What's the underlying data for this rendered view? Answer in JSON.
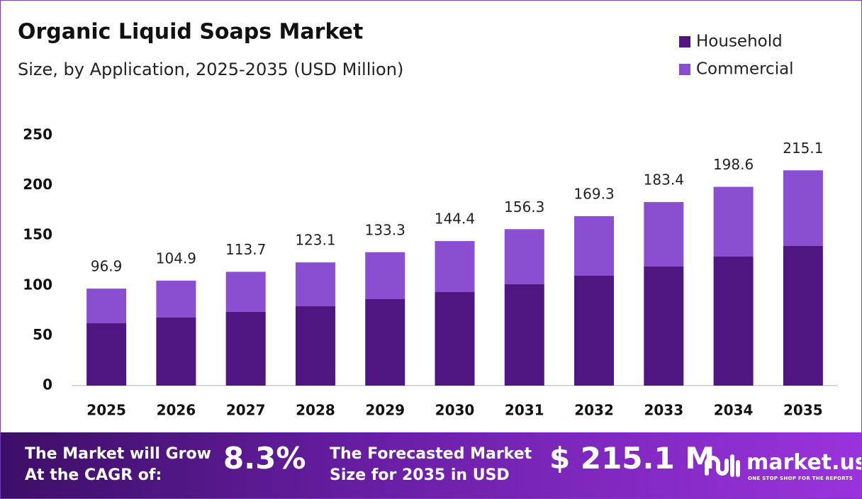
{
  "chart_data": {
    "type": "stacked_bar",
    "title": "Organic Liquid Soaps Market",
    "subtitle": "Size, by Application, 2025-2035 (USD Million)",
    "categories": [
      "2025",
      "2026",
      "2027",
      "2028",
      "2029",
      "2030",
      "2031",
      "2032",
      "2033",
      "2034",
      "2035"
    ],
    "series": [
      {
        "name": "Household",
        "color": "#4f1581",
        "values": [
          62.3,
          68.0,
          73.7,
          79.3,
          86.4,
          93.5,
          101.3,
          109.8,
          119.0,
          128.9,
          139.5
        ]
      },
      {
        "name": "Commercial",
        "color": "#8a4fd0",
        "values": [
          34.6,
          36.9,
          40.0,
          43.8,
          46.9,
          50.9,
          55.0,
          59.5,
          64.4,
          69.7,
          75.6
        ]
      }
    ],
    "totals": [
      96.9,
      104.9,
      113.7,
      123.1,
      133.3,
      144.4,
      156.3,
      169.3,
      183.4,
      198.6,
      215.1
    ],
    "ylim": [
      0,
      250
    ],
    "yticks": [
      0,
      50,
      100,
      150,
      200,
      250
    ],
    "grid": false,
    "legend": "top-right"
  },
  "banner": {
    "cagr_label": [
      "The Market will Grow",
      "At the CAGR of:"
    ],
    "cagr_value": "8.3%",
    "forecast_label": [
      "The Forecasted Market",
      "Size for 2035 in USD"
    ],
    "forecast_value": "$ 215.1 M",
    "brand": "market.us",
    "tagline": "ONE STOP SHOP FOR THE REPORTS"
  }
}
